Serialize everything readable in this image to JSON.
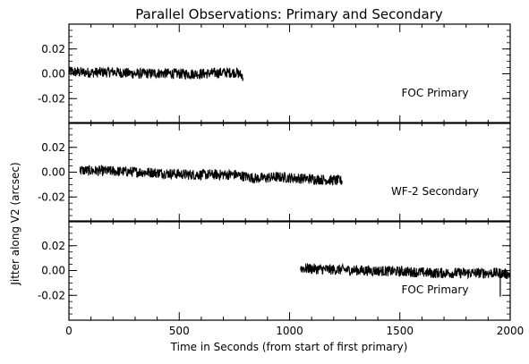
{
  "chart_data": {
    "type": "line",
    "title": "Parallel Observations: Primary and Secondary",
    "xlabel": "Time in Seconds (from start of first primary)",
    "ylabel": "Jitter along V2 (arcsec)",
    "xlim": [
      0,
      2000
    ],
    "xticks": [
      "0",
      "500",
      "1000",
      "1500",
      "2000"
    ],
    "grid": false,
    "panels": [
      {
        "annotation": "FOC Primary",
        "ylim": [
          -0.04,
          0.04
        ],
        "yticks": [
          "0.02",
          "0.00",
          "-0.02"
        ],
        "series": [
          {
            "x": [
              0,
              100,
              200,
              300,
              400,
              500,
              600,
              700,
              760,
              790
            ],
            "y": [
              0.0015,
              0.001,
              0.0015,
              0.0,
              0.0005,
              0.0,
              0.0,
              0.001,
              0.001,
              -0.002
            ]
          }
        ]
      },
      {
        "annotation": "WF-2 Secondary",
        "ylim": [
          -0.04,
          0.04
        ],
        "yticks": [
          "0.02",
          "0.00",
          "-0.02"
        ],
        "series": [
          {
            "x": [
              50,
              150,
              250,
              350,
              450,
              550,
              650,
              750,
              850,
              950,
              1050,
              1150,
              1240
            ],
            "y": [
              0.0015,
              0.001,
              0.0005,
              0.0,
              -0.001,
              -0.002,
              -0.002,
              -0.002,
              -0.005,
              -0.004,
              -0.005,
              -0.006,
              -0.007
            ]
          }
        ]
      },
      {
        "annotation": "FOC Primary",
        "ylim": [
          -0.04,
          0.04
        ],
        "yticks": [
          "0.02",
          "0.00",
          "-0.02"
        ],
        "series": [
          {
            "x": [
              1050,
              1150,
              1250,
              1350,
              1450,
              1550,
              1650,
              1750,
              1850,
              1950,
              2000
            ],
            "y": [
              0.002,
              0.001,
              0.0005,
              0.0,
              -0.0005,
              -0.001,
              -0.002,
              -0.002,
              -0.002,
              -0.002,
              -0.003
            ]
          }
        ]
      }
    ]
  }
}
